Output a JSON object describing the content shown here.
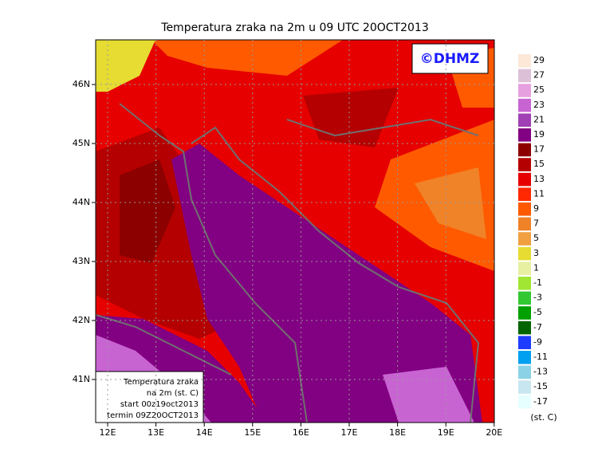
{
  "title": "Temperatura zraka na 2m u 09 UTC 20OCT2013",
  "logo": "©DHMZ",
  "map": {
    "lon_labels": [
      "12E",
      "13E",
      "14E",
      "15E",
      "16E",
      "17E",
      "18E",
      "19E",
      "20E"
    ],
    "lat_labels": [
      "46N",
      "45N",
      "44N",
      "43N",
      "42N",
      "41N"
    ]
  },
  "info_box": {
    "lines": [
      "Temperatura zraka",
      "na 2m (st. C)",
      "start 00z19oct2013",
      "termin 09Z20OCT2013"
    ]
  },
  "colorbar": {
    "labels": [
      29,
      27,
      25,
      23,
      21,
      19,
      17,
      15,
      13,
      11,
      9,
      7,
      5,
      3,
      1,
      -1,
      -3,
      -5,
      -7,
      -9,
      -11,
      -13,
      -15,
      -17
    ],
    "colors": [
      "#fde8d8",
      "#dcc0d8",
      "#e6a0e0",
      "#c864d2",
      "#a040b4",
      "#820082",
      "#8c0000",
      "#b40000",
      "#e60000",
      "#ff2800",
      "#ff5a00",
      "#f08228",
      "#f0a040",
      "#e6dc32",
      "#e6f0a0",
      "#a0e632",
      "#32c832",
      "#00a000",
      "#006400",
      "#1e3cff",
      "#00a0f0",
      "#8cd2e6",
      "#c8e6f0",
      "#e6ffff"
    ],
    "unit": "(st. C)"
  }
}
